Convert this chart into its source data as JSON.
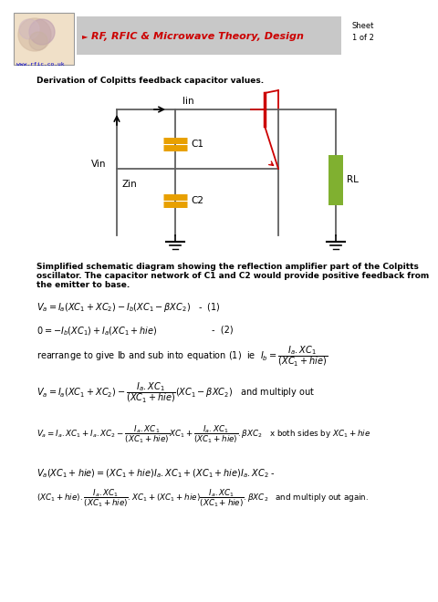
{
  "bg_color": "#ffffff",
  "header_bg": "#c8c8c8",
  "header_text_color": "#cc0000",
  "capacitor_color": "#e8a000",
  "transistor_color": "#cc0000",
  "resistor_color": "#80b030",
  "wire_color": "#606060",
  "title": "Derivation of Colpitts feedback capacitor values.",
  "website": "www.rfic.co.uk",
  "sheet_text": "Sheet\n1 of 2",
  "header_title": "RF, RFIC & Microwave Theory, Design",
  "caption_line1": "Simplified schematic diagram showing the reflection amplifier part of the Colpitts",
  "caption_line2": "oscillator. The capacitor network of C1 and C2 would provide positive feedback from",
  "caption_line3": "the emitter to base.",
  "logo_facecolor": "#f0e0c8"
}
